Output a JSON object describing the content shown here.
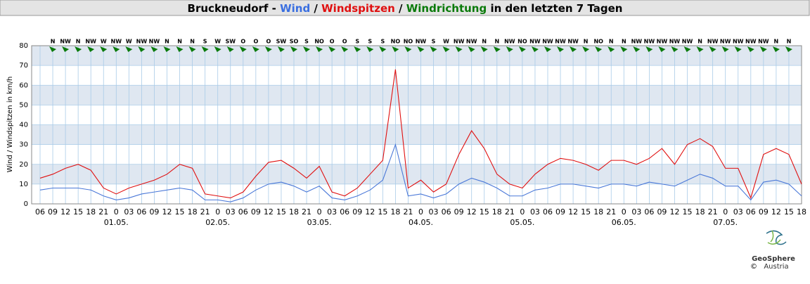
{
  "chart_data": {
    "type": "line",
    "title_parts": [
      {
        "text": "Bruckneudorf - ",
        "color": "#000000"
      },
      {
        "text": "Wind",
        "color": "#3a6fe0"
      },
      {
        "text": " / ",
        "color": "#000000"
      },
      {
        "text": "Windspitzen",
        "color": "#e01010"
      },
      {
        "text": " / ",
        "color": "#000000"
      },
      {
        "text": "Windrichtung",
        "color": "#0a7a0a"
      },
      {
        "text": " in den letzten 7 Tagen",
        "color": "#000000"
      }
    ],
    "y_label": "Wind / Windspitzen in km/h",
    "categories": [
      "06",
      "09",
      "12",
      "15",
      "18",
      "21",
      "0",
      "03",
      "06",
      "09",
      "12",
      "15",
      "18",
      "21",
      "0",
      "03",
      "06",
      "09",
      "12",
      "15",
      "18",
      "21",
      "0",
      "03",
      "06",
      "09",
      "12",
      "15",
      "18",
      "21",
      "0",
      "03",
      "06",
      "09",
      "12",
      "15",
      "18",
      "21",
      "0",
      "03",
      "06",
      "09",
      "12",
      "15",
      "18",
      "21",
      "0",
      "03",
      "06",
      "09",
      "12",
      "15",
      "18",
      "21",
      "0",
      "03",
      "06",
      "09",
      "12",
      "15",
      "18"
    ],
    "dates": [
      null,
      null,
      null,
      null,
      null,
      null,
      "01.05.",
      null,
      null,
      null,
      null,
      null,
      null,
      null,
      "02.05.",
      null,
      null,
      null,
      null,
      null,
      null,
      null,
      "03.05.",
      null,
      null,
      null,
      null,
      null,
      null,
      null,
      "04.05.",
      null,
      null,
      null,
      null,
      null,
      null,
      null,
      "05.05.",
      null,
      null,
      null,
      null,
      null,
      null,
      null,
      "06.05.",
      null,
      null,
      null,
      null,
      null,
      null,
      null,
      "07.05.",
      null,
      null,
      null,
      null,
      null,
      null
    ],
    "directions": [
      null,
      "N",
      "NW",
      "N",
      "NW",
      "W",
      "NW",
      "W",
      "NW",
      "NW",
      "N",
      "N",
      "N",
      "S",
      "W",
      "SW",
      "O",
      "O",
      "O",
      "SW",
      "SO",
      "S",
      "NO",
      "O",
      "O",
      "S",
      "S",
      "S",
      "NO",
      "NO",
      "NW",
      "S",
      "W",
      "NW",
      "NW",
      "N",
      "N",
      "NW",
      "NO",
      "NW",
      "NW",
      "NW",
      "NW",
      "N",
      "NO",
      "N",
      "N",
      "NW",
      "NW",
      "NW",
      "NW",
      "NW",
      "N",
      "NW",
      "NW",
      "NW",
      "NW",
      "NW",
      "N",
      "N",
      null
    ],
    "direction_color": "#0a7a0a",
    "series": [
      {
        "name": "Windspitzen",
        "color": "#e01010",
        "values": [
          13,
          15,
          18,
          20,
          17,
          8,
          5,
          8,
          10,
          12,
          15,
          20,
          18,
          5,
          4,
          3,
          6,
          14,
          21,
          22,
          18,
          13,
          19,
          6,
          4,
          8,
          15,
          22,
          68,
          8,
          12,
          6,
          10,
          25,
          37,
          28,
          15,
          10,
          8,
          15,
          20,
          23,
          22,
          20,
          17,
          22,
          22,
          20,
          23,
          28,
          20,
          30,
          33,
          29,
          18,
          18,
          3,
          25,
          28,
          25,
          10
        ]
      },
      {
        "name": "Wind",
        "color": "#4a78d8",
        "values": [
          7,
          8,
          8,
          8,
          7,
          4,
          2,
          3,
          5,
          6,
          7,
          8,
          7,
          2,
          2,
          1,
          3,
          7,
          10,
          11,
          9,
          6,
          9,
          3,
          2,
          4,
          7,
          12,
          30,
          4,
          5,
          3,
          5,
          10,
          13,
          11,
          8,
          4,
          4,
          7,
          8,
          10,
          10,
          9,
          8,
          10,
          10,
          9,
          11,
          10,
          9,
          12,
          15,
          13,
          9,
          9,
          2,
          11,
          12,
          10,
          4
        ]
      }
    ],
    "ylim": [
      0,
      80
    ],
    "yticks": [
      0,
      10,
      20,
      30,
      40,
      50,
      60,
      70,
      80
    ],
    "band_color": "#dfe7f1",
    "grid_color": "#a9cbe8",
    "logo": {
      "name": "GeoSphere",
      "sub": "Austria",
      "copyright": "©"
    }
  }
}
